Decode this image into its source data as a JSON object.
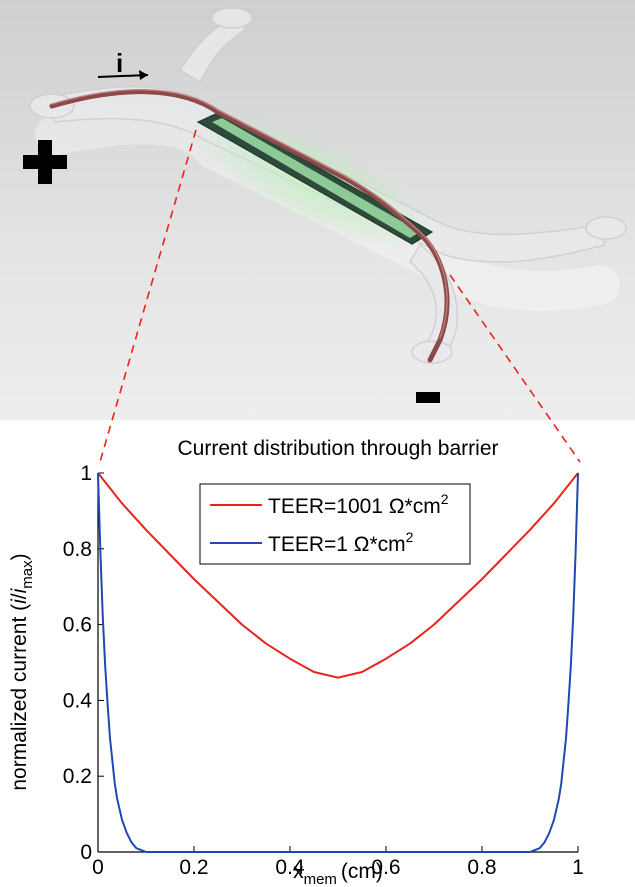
{
  "illustration": {
    "current_label": "i",
    "plus_symbol": "+",
    "minus_symbol": "-",
    "membrane_color": "#9fe0a8",
    "wire_color": "#8a4a4a"
  },
  "chart_data": {
    "type": "line",
    "title": "Current distribution through barrier",
    "xlabel_main": "x",
    "xlabel_sub": "mem",
    "xlabel_unit": "(cm)",
    "ylabel_main": "normalized current (",
    "ylabel_i": "i",
    "ylabel_slash": "/",
    "ylabel_imax_i": "i",
    "ylabel_imax_sub": "max",
    "ylabel_end": ")",
    "xlim": [
      0,
      1
    ],
    "ylim": [
      0,
      1
    ],
    "xticks": [
      "0",
      "0.2",
      "0.4",
      "0.6",
      "0.8",
      "1"
    ],
    "yticks": [
      "0",
      "0.2",
      "0.4",
      "0.6",
      "0.8",
      "1"
    ],
    "legend_position": "top-center",
    "series": [
      {
        "name": "TEER=1001 Ω*cm",
        "name_sup": "2",
        "color": "#e8241c",
        "x": [
          0,
          0.05,
          0.1,
          0.15,
          0.2,
          0.25,
          0.3,
          0.35,
          0.4,
          0.45,
          0.5,
          0.55,
          0.6,
          0.65,
          0.7,
          0.75,
          0.8,
          0.85,
          0.9,
          0.95,
          1
        ],
        "y": [
          1.0,
          0.92,
          0.85,
          0.785,
          0.72,
          0.66,
          0.6,
          0.55,
          0.51,
          0.475,
          0.46,
          0.475,
          0.51,
          0.55,
          0.6,
          0.66,
          0.72,
          0.785,
          0.85,
          0.92,
          1.0
        ]
      },
      {
        "name": "TEER=1 Ω*cm",
        "name_sup": "2",
        "color": "#1f49b0",
        "x": [
          0,
          0.005,
          0.01,
          0.015,
          0.02,
          0.025,
          0.03,
          0.035,
          0.04,
          0.05,
          0.06,
          0.07,
          0.08,
          0.1,
          0.2,
          0.3,
          0.4,
          0.5,
          0.6,
          0.7,
          0.8,
          0.9,
          0.92,
          0.93,
          0.94,
          0.95,
          0.96,
          0.965,
          0.97,
          0.975,
          0.98,
          0.985,
          0.99,
          0.995,
          1
        ],
        "y": [
          1.0,
          0.79,
          0.62,
          0.49,
          0.39,
          0.3,
          0.24,
          0.18,
          0.14,
          0.085,
          0.05,
          0.025,
          0.01,
          0.0,
          0.0,
          0.0,
          0.0,
          0.0,
          0.0,
          0.0,
          0.0,
          0.0,
          0.01,
          0.025,
          0.05,
          0.085,
          0.14,
          0.18,
          0.24,
          0.3,
          0.39,
          0.49,
          0.62,
          0.79,
          1.0
        ]
      }
    ]
  }
}
